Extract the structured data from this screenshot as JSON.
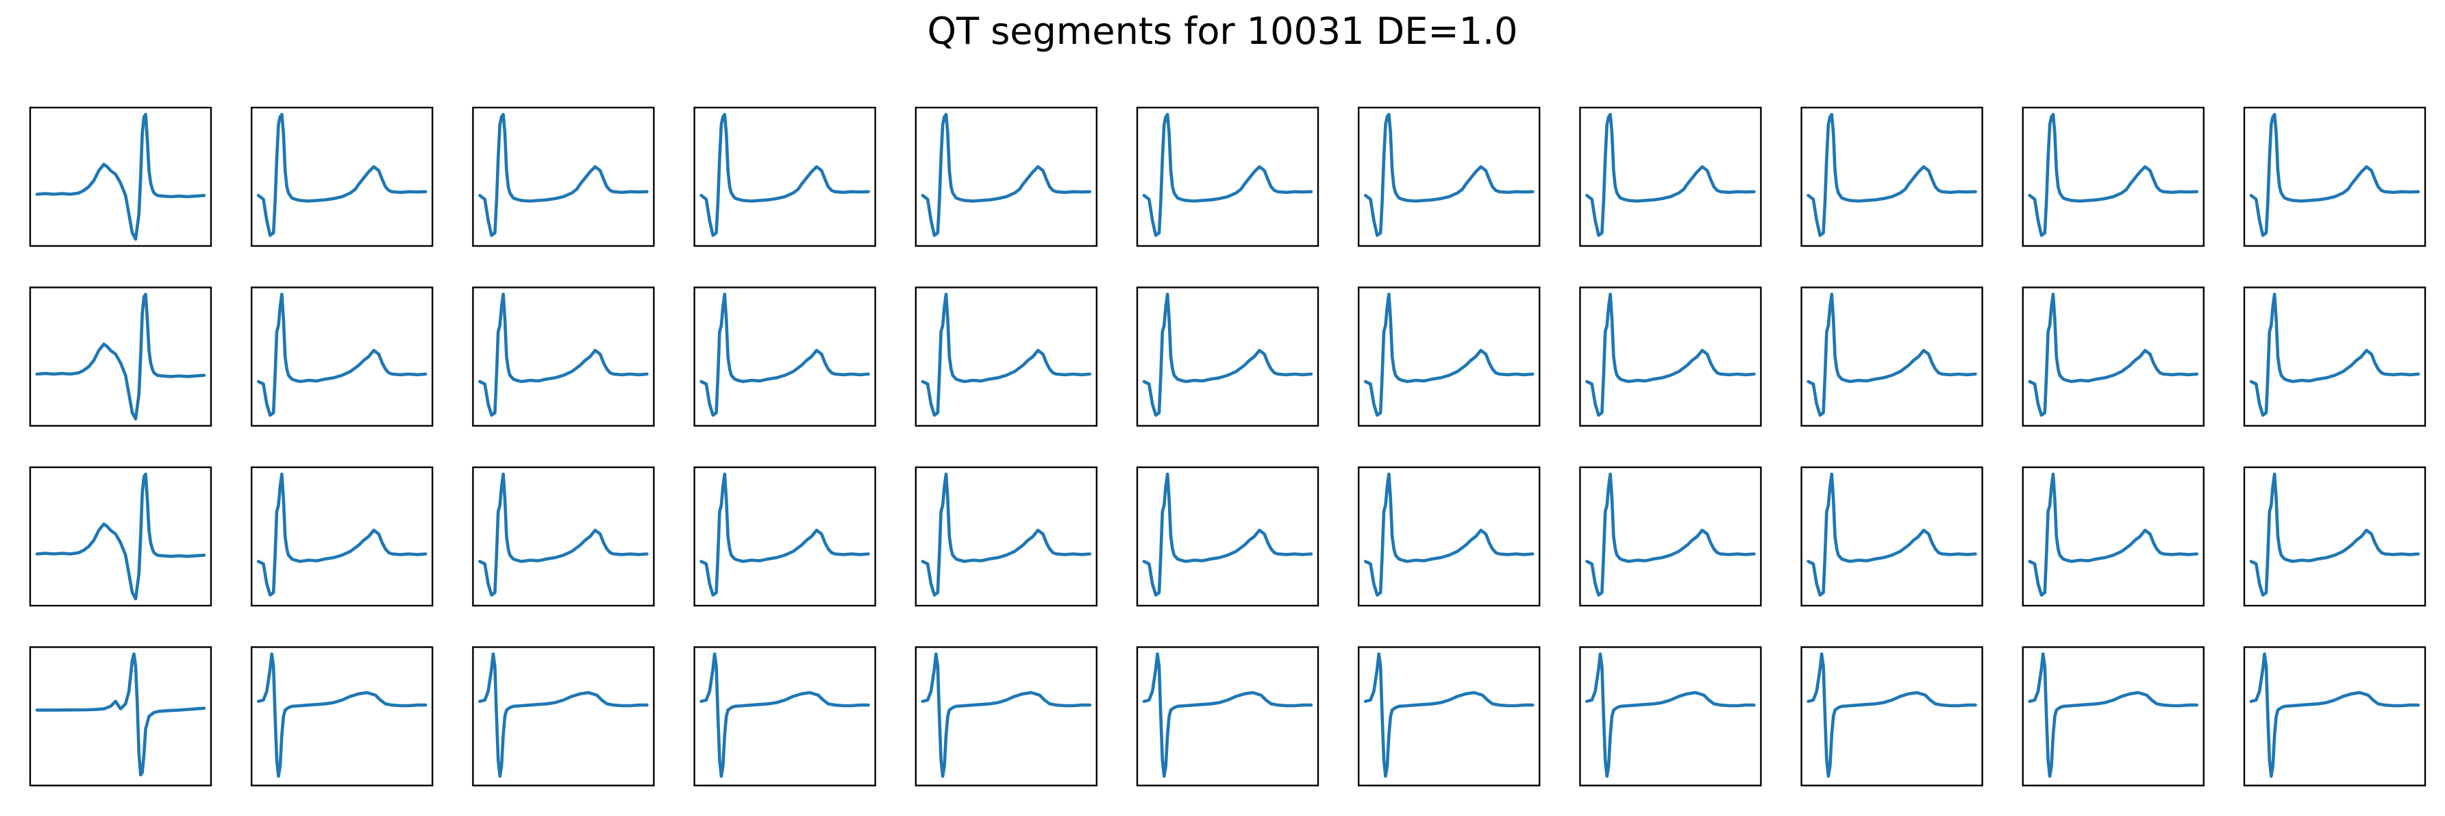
{
  "title": "QT segments for 10031 DE=1.0",
  "line_color": "#1f77b4",
  "chart_data": {
    "type": "line",
    "title": "QT segments for 10031 DE=1.0",
    "rows": 4,
    "cols": 11,
    "axes_ticks": "hidden",
    "grid": false,
    "panels": [
      {
        "row": 0,
        "col": 0,
        "template": "A"
      },
      {
        "row": 0,
        "col": 1,
        "template": "B"
      },
      {
        "row": 0,
        "col": 2,
        "template": "B"
      },
      {
        "row": 0,
        "col": 3,
        "template": "B"
      },
      {
        "row": 0,
        "col": 4,
        "template": "B"
      },
      {
        "row": 0,
        "col": 5,
        "template": "B"
      },
      {
        "row": 0,
        "col": 6,
        "template": "B"
      },
      {
        "row": 0,
        "col": 7,
        "template": "B"
      },
      {
        "row": 0,
        "col": 8,
        "template": "B"
      },
      {
        "row": 0,
        "col": 9,
        "template": "B"
      },
      {
        "row": 0,
        "col": 10,
        "template": "B"
      },
      {
        "row": 1,
        "col": 0,
        "template": "A"
      },
      {
        "row": 1,
        "col": 1,
        "template": "C"
      },
      {
        "row": 1,
        "col": 2,
        "template": "C"
      },
      {
        "row": 1,
        "col": 3,
        "template": "C"
      },
      {
        "row": 1,
        "col": 4,
        "template": "C"
      },
      {
        "row": 1,
        "col": 5,
        "template": "C"
      },
      {
        "row": 1,
        "col": 6,
        "template": "C"
      },
      {
        "row": 1,
        "col": 7,
        "template": "C"
      },
      {
        "row": 1,
        "col": 8,
        "template": "C"
      },
      {
        "row": 1,
        "col": 9,
        "template": "C"
      },
      {
        "row": 1,
        "col": 10,
        "template": "C"
      },
      {
        "row": 2,
        "col": 0,
        "template": "A"
      },
      {
        "row": 2,
        "col": 1,
        "template": "C"
      },
      {
        "row": 2,
        "col": 2,
        "template": "C"
      },
      {
        "row": 2,
        "col": 3,
        "template": "C"
      },
      {
        "row": 2,
        "col": 4,
        "template": "C"
      },
      {
        "row": 2,
        "col": 5,
        "template": "C"
      },
      {
        "row": 2,
        "col": 6,
        "template": "C"
      },
      {
        "row": 2,
        "col": 7,
        "template": "C"
      },
      {
        "row": 2,
        "col": 8,
        "template": "C"
      },
      {
        "row": 2,
        "col": 9,
        "template": "C"
      },
      {
        "row": 2,
        "col": 10,
        "template": "C"
      },
      {
        "row": 3,
        "col": 0,
        "template": "D"
      },
      {
        "row": 3,
        "col": 1,
        "template": "E"
      },
      {
        "row": 3,
        "col": 2,
        "template": "E"
      },
      {
        "row": 3,
        "col": 3,
        "template": "E"
      },
      {
        "row": 3,
        "col": 4,
        "template": "E"
      },
      {
        "row": 3,
        "col": 5,
        "template": "E"
      },
      {
        "row": 3,
        "col": 6,
        "template": "E"
      },
      {
        "row": 3,
        "col": 7,
        "template": "E"
      },
      {
        "row": 3,
        "col": 8,
        "template": "E"
      },
      {
        "row": 3,
        "col": 9,
        "template": "E"
      },
      {
        "row": 3,
        "col": 10,
        "template": "E"
      }
    ],
    "templates": {
      "A": {
        "x": [
          0,
          0.05,
          0.1,
          0.15,
          0.2,
          0.25,
          0.28,
          0.31,
          0.34,
          0.37,
          0.4,
          0.42,
          0.44,
          0.47,
          0.5,
          0.53,
          0.55,
          0.57,
          0.59,
          0.61,
          0.62,
          0.63,
          0.64,
          0.65,
          0.66,
          0.67,
          0.68,
          0.69,
          0.7,
          0.72,
          0.75,
          0.8,
          0.85,
          0.9,
          0.95,
          1
        ],
        "y": [
          0.36,
          0.365,
          0.36,
          0.365,
          0.36,
          0.37,
          0.39,
          0.42,
          0.47,
          0.55,
          0.6,
          0.58,
          0.55,
          0.52,
          0.45,
          0.35,
          0.2,
          0.05,
          0,
          0.2,
          0.5,
          0.85,
          0.98,
          1,
          0.8,
          0.55,
          0.45,
          0.4,
          0.37,
          0.35,
          0.345,
          0.34,
          0.345,
          0.34,
          0.345,
          0.35
        ]
      },
      "B": {
        "x": [
          0,
          0.03,
          0.05,
          0.07,
          0.09,
          0.1,
          0.11,
          0.12,
          0.13,
          0.14,
          0.15,
          0.16,
          0.17,
          0.18,
          0.2,
          0.22,
          0.25,
          0.3,
          0.35,
          0.4,
          0.45,
          0.5,
          0.55,
          0.58,
          0.6,
          0.63,
          0.66,
          0.69,
          0.72,
          0.74,
          0.76,
          0.78,
          0.8,
          0.85,
          0.9,
          0.95,
          1
        ],
        "y": [
          0.35,
          0.32,
          0.15,
          0.03,
          0.05,
          0.3,
          0.65,
          0.92,
          0.98,
          1,
          0.85,
          0.55,
          0.42,
          0.37,
          0.33,
          0.32,
          0.31,
          0.305,
          0.31,
          0.315,
          0.325,
          0.34,
          0.37,
          0.4,
          0.44,
          0.49,
          0.54,
          0.58,
          0.55,
          0.48,
          0.42,
          0.39,
          0.38,
          0.375,
          0.38,
          0.378,
          0.38
        ]
      },
      "C": {
        "x": [
          0,
          0.03,
          0.05,
          0.07,
          0.09,
          0.1,
          0.11,
          0.12,
          0.13,
          0.14,
          0.15,
          0.16,
          0.17,
          0.18,
          0.2,
          0.22,
          0.25,
          0.3,
          0.35,
          0.4,
          0.45,
          0.5,
          0.55,
          0.6,
          0.63,
          0.66,
          0.69,
          0.72,
          0.74,
          0.76,
          0.78,
          0.8,
          0.85,
          0.9,
          0.95,
          1
        ],
        "y": [
          0.3,
          0.28,
          0.12,
          0.03,
          0.05,
          0.35,
          0.7,
          0.75,
          0.9,
          1,
          0.8,
          0.5,
          0.4,
          0.35,
          0.32,
          0.31,
          0.3,
          0.31,
          0.305,
          0.32,
          0.33,
          0.35,
          0.38,
          0.43,
          0.47,
          0.5,
          0.55,
          0.52,
          0.45,
          0.4,
          0.37,
          0.36,
          0.355,
          0.36,
          0.355,
          0.36
        ]
      },
      "D": {
        "x": [
          0,
          0.1,
          0.2,
          0.3,
          0.35,
          0.4,
          0.44,
          0.47,
          0.5,
          0.53,
          0.55,
          0.57,
          0.58,
          0.59,
          0.6,
          0.61,
          0.62,
          0.63,
          0.64,
          0.65,
          0.67,
          0.7,
          0.73,
          0.78,
          0.85,
          0.9,
          0.95,
          1
        ],
        "y": [
          0.55,
          0.55,
          0.551,
          0.552,
          0.555,
          0.56,
          0.58,
          0.62,
          0.56,
          0.6,
          0.7,
          0.95,
          1,
          0.9,
          0.6,
          0.2,
          0.03,
          0.05,
          0.2,
          0.4,
          0.5,
          0.53,
          0.54,
          0.545,
          0.55,
          0.555,
          0.56,
          0.565
        ]
      },
      "E": {
        "x": [
          0,
          0.03,
          0.05,
          0.07,
          0.08,
          0.09,
          0.1,
          0.11,
          0.12,
          0.13,
          0.14,
          0.15,
          0.16,
          0.18,
          0.2,
          0.25,
          0.3,
          0.35,
          0.4,
          0.45,
          0.5,
          0.55,
          0.6,
          0.65,
          0.7,
          0.73,
          0.76,
          0.8,
          0.85,
          0.9,
          0.95,
          1
        ],
        "y": [
          0.62,
          0.63,
          0.7,
          0.88,
          1,
          0.9,
          0.5,
          0.15,
          0.02,
          0.1,
          0.35,
          0.5,
          0.55,
          0.57,
          0.58,
          0.585,
          0.59,
          0.595,
          0.6,
          0.61,
          0.63,
          0.66,
          0.68,
          0.69,
          0.67,
          0.63,
          0.6,
          0.59,
          0.585,
          0.585,
          0.59,
          0.59
        ]
      }
    }
  }
}
